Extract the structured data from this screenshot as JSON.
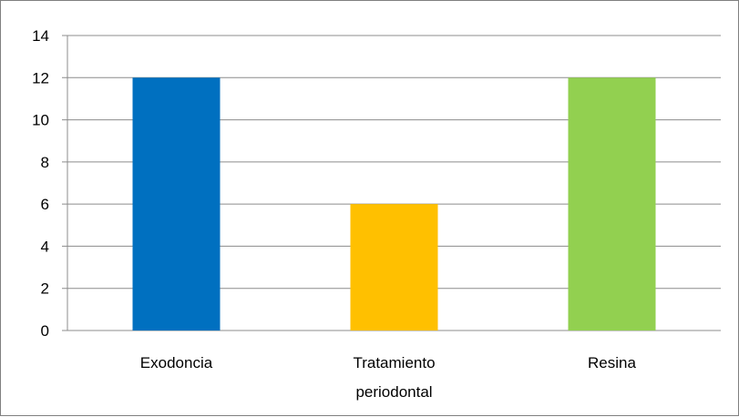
{
  "chart_data": {
    "type": "bar",
    "categories": [
      [
        "Exodoncia"
      ],
      [
        "Tratamiento",
        "periodontal"
      ],
      [
        "Resina"
      ]
    ],
    "values": [
      12,
      6,
      12
    ],
    "colors": [
      "#0070c0",
      "#ffc000",
      "#92d050"
    ],
    "ylim": [
      0,
      14
    ],
    "yticks": [
      "0",
      "2",
      "4",
      "6",
      "8",
      "10",
      "12",
      "14"
    ],
    "grid": true,
    "legend": false,
    "gridline_color": "#8c8c8c"
  }
}
